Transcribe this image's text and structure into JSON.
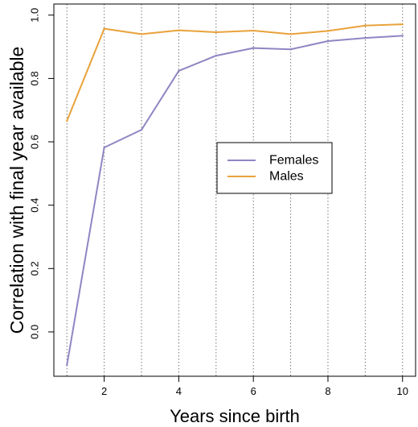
{
  "chart_data": {
    "type": "line",
    "title": "",
    "xlabel": "Years since birth",
    "ylabel": "Correlation with final year available",
    "x": [
      1,
      2,
      3,
      4,
      5,
      6,
      7,
      8,
      9,
      10
    ],
    "xlim": [
      0.65,
      10.35
    ],
    "ylim": [
      -0.14,
      1.035
    ],
    "x_ticks": [
      2,
      4,
      6,
      8,
      10
    ],
    "y_ticks": [
      0.0,
      0.2,
      0.4,
      0.6,
      0.8,
      1.0
    ],
    "x_tick_labels": [
      "2",
      "4",
      "6",
      "8",
      "10"
    ],
    "y_tick_labels": [
      "0.0",
      "0.2",
      "0.4",
      "0.6",
      "0.8",
      "1.0"
    ],
    "vertical_gridlines_at": [
      1,
      2,
      3,
      4,
      5,
      6,
      7,
      8,
      9,
      10
    ],
    "grid": "vertical dotted lines at each year",
    "legend_position": "center-right",
    "series": [
      {
        "name": "Females",
        "color": "#8E86C3",
        "values": [
          -0.105,
          0.582,
          0.638,
          0.824,
          0.872,
          0.896,
          0.892,
          0.918,
          0.928,
          0.935
        ]
      },
      {
        "name": "Males",
        "color": "#E9A23B",
        "values": [
          0.666,
          0.957,
          0.94,
          0.952,
          0.946,
          0.951,
          0.94,
          0.95,
          0.967,
          0.971
        ]
      }
    ]
  }
}
